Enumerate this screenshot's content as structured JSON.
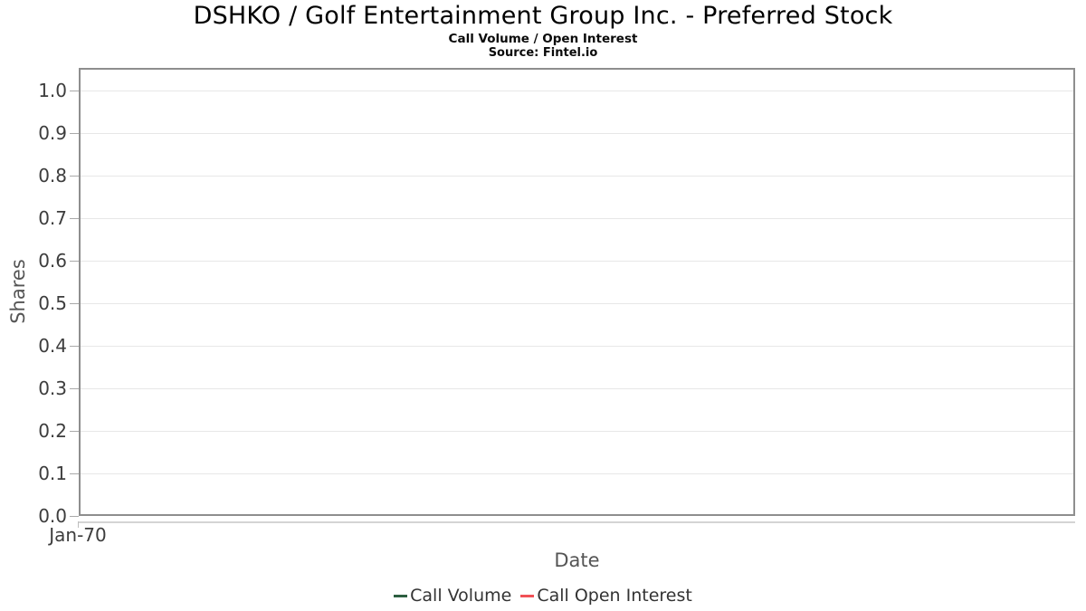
{
  "header": {
    "title": "DSHKO / Golf Entertainment Group Inc. - Preferred Stock",
    "subtitle": "Call Volume / Open Interest",
    "source": "Source: Fintel.io"
  },
  "chart_data": {
    "type": "line",
    "title": "DSHKO / Golf Entertainment Group Inc. - Preferred Stock",
    "subtitle": "Call Volume / Open Interest",
    "source": "Source: Fintel.io",
    "xlabel": "Date",
    "ylabel": "Shares",
    "ylim": [
      0.0,
      1.0
    ],
    "y_ticks": [
      "1.0",
      "0.9",
      "0.8",
      "0.7",
      "0.6",
      "0.5",
      "0.4",
      "0.3",
      "0.2",
      "0.1",
      "0.0"
    ],
    "x_ticks": [
      "Jan-70"
    ],
    "grid": true,
    "legend_position": "bottom",
    "plot_border_color": "#8e8e8e",
    "grid_color": "#e7e7e7",
    "tick_label_color": "#3d3d3d",
    "axis_title_color": "#555555",
    "series": [
      {
        "name": "Call Volume",
        "color": "#2d5f41",
        "x": [],
        "values": []
      },
      {
        "name": "Call Open Interest",
        "color": "#f15156",
        "x": [],
        "values": []
      }
    ]
  }
}
